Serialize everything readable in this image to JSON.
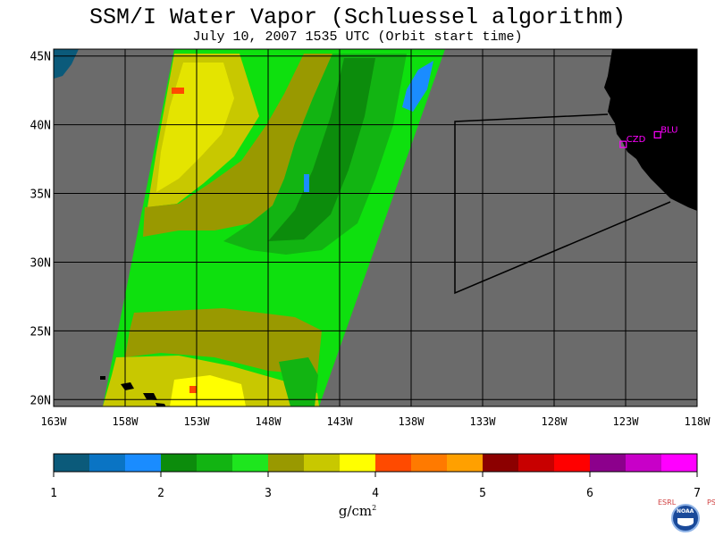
{
  "title": "SSM/I Water Vapor (Schluessel algorithm)",
  "subtitle": "July 10, 2007  1535 UTC  (Orbit start time)",
  "map": {
    "lat_range": [
      19.5,
      45.5
    ],
    "lon_range": [
      -163,
      -118
    ],
    "lat_labels": [
      "45N",
      "40N",
      "35N",
      "30N",
      "25N",
      "20N"
    ],
    "lat_values": [
      45,
      40,
      35,
      30,
      25,
      20
    ],
    "lon_labels": [
      "163W",
      "158W",
      "153W",
      "148W",
      "143W",
      "138W",
      "133W",
      "128W",
      "123W",
      "118W"
    ],
    "lon_values": [
      -163,
      -158,
      -153,
      -148,
      -143,
      -138,
      -133,
      -128,
      -123,
      -118
    ],
    "stations": [
      {
        "label": "BLU",
        "lon": -120.8,
        "lat": 39.3
      },
      {
        "label": "CZD",
        "lon": -123.2,
        "lat": 38.6
      }
    ],
    "colors": {
      "no_data": "#6b6b6b",
      "land": "#000000",
      "grid": "#000000",
      "station": "#ff00ff"
    }
  },
  "colorbar": {
    "tick_labels": [
      "1",
      "2",
      "3",
      "4",
      "5",
      "6",
      "7"
    ],
    "colors": [
      "#0b5a7a",
      "#0a74c4",
      "#1a8cff",
      "#0c8c0c",
      "#12b412",
      "#1ee61e",
      "#999900",
      "#c8c800",
      "#ffff00",
      "#ff4a00",
      "#ff7a00",
      "#ffa000",
      "#8c0000",
      "#c80000",
      "#ff0000",
      "#8c008c",
      "#c800c8",
      "#ff00ff"
    ],
    "units": "g/cm",
    "units_exp": "2"
  },
  "logo": {
    "left_text": "ESRL",
    "right_text": "PSD",
    "emblem": "NOAA"
  }
}
